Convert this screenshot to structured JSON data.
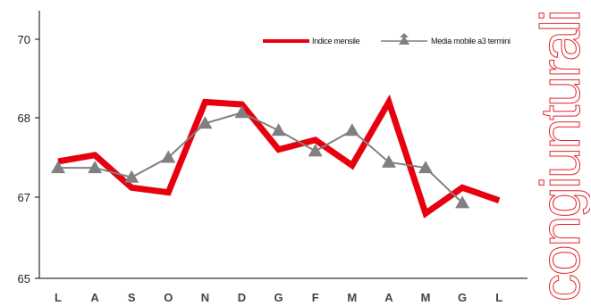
{
  "side_label": "congiunturali",
  "colors": {
    "series_main": "#e8000e",
    "series_ma": "#808080",
    "side_label": "#e0262a",
    "axis": "#000000"
  },
  "chart_data": {
    "type": "line",
    "categories": [
      "L",
      "A",
      "S",
      "O",
      "N",
      "D",
      "G",
      "F",
      "M",
      "A",
      "M",
      "G",
      "L"
    ],
    "y_ticks": [
      65,
      67,
      68,
      70
    ],
    "y_tick_labels": [
      "65",
      "67",
      "68",
      "70"
    ],
    "series": [
      {
        "name": "Indice mensile",
        "marker": "none",
        "values": [
          67.45,
          67.53,
          67.12,
          67.06,
          68.4,
          68.34,
          67.6,
          67.72,
          67.4,
          68.4,
          66.6,
          67.12,
          66.92
        ]
      },
      {
        "name": "Media mobile a3 termini",
        "marker": "triangle",
        "values": [
          67.37,
          67.37,
          67.25,
          67.5,
          67.93,
          68.13,
          67.84,
          67.58,
          67.84,
          67.44,
          67.37,
          66.86,
          null
        ]
      }
    ],
    "legend_position": "top-right",
    "grid": false
  }
}
